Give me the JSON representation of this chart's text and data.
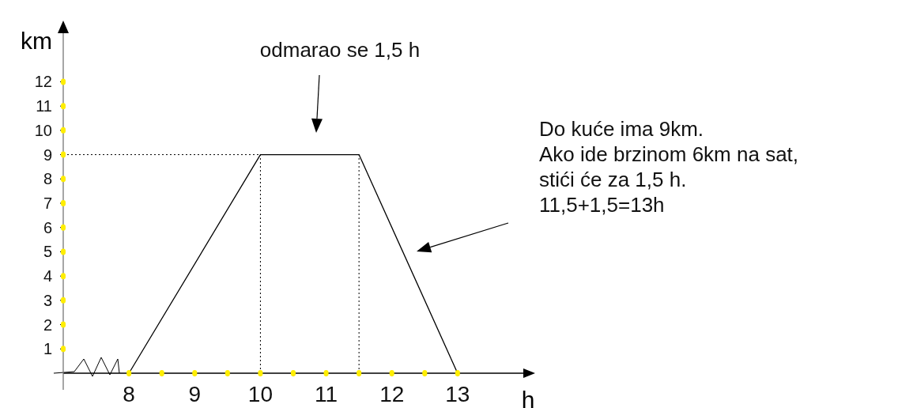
{
  "chart_data": {
    "type": "line",
    "xlabel": "h",
    "ylabel": "km",
    "xlim": [
      7,
      14
    ],
    "ylim": [
      0,
      14
    ],
    "xticks": [
      8,
      {
        "value": 8.5,
        "label": null
      },
      9,
      {
        "value": 9.5,
        "label": null
      },
      10,
      {
        "value": 10.5,
        "label": null
      },
      11,
      {
        "value": 11.5,
        "label": null
      },
      12,
      {
        "value": 12.5,
        "label": null
      },
      13
    ],
    "yticks": [
      1,
      2,
      3,
      4,
      5,
      6,
      7,
      8,
      9,
      10,
      11,
      12
    ],
    "x": [
      8,
      10,
      11.5,
      13
    ],
    "series": [
      {
        "color": "#000000",
        "values": [
          0,
          9,
          9,
          0
        ]
      }
    ],
    "marker": "none",
    "line_style": "solid",
    "grid": false,
    "ref_lines": [
      {
        "axis": "y",
        "value": 9,
        "label": null,
        "line_style": "dotted"
      },
      {
        "axis": "x",
        "value": 10,
        "label": null,
        "line_style": "dotted"
      },
      {
        "axis": "x",
        "value": 11.5,
        "label": null,
        "line_style": "dotted"
      }
    ],
    "annotations": [
      "odmarao se 1,5 h",
      "Do kuće ima 9km.\nAko ide brzinom 6km na sat,\nstići će za 1,5 h.\n11,5+1,5=13h"
    ]
  }
}
